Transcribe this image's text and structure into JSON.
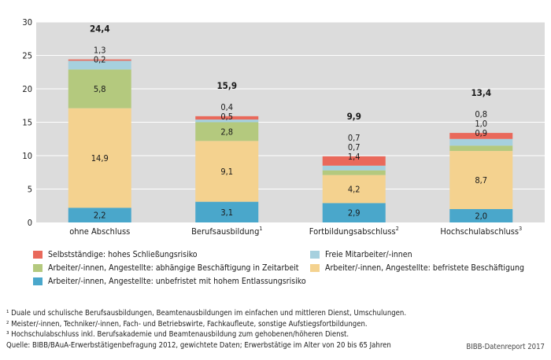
{
  "chart_data": {
    "type": "stacked_bar",
    "categories": [
      "ohne Abschluss",
      "Berufsausbildung",
      "Fortbildungsabschluss",
      "Hochschulabschluss"
    ],
    "category_footnote_marks": [
      "",
      "1",
      "2",
      "3"
    ],
    "ylim": [
      0,
      30
    ],
    "yticks": [
      "0",
      "5",
      "10",
      "15",
      "20",
      "25",
      "30"
    ],
    "series": [
      {
        "name": "Arbeiter/-innen, Angestellte: unbefristet mit hohem Entlassungsrisiko",
        "color": "#4aa7cb",
        "values": [
          2.2,
          3.1,
          2.9,
          2.0
        ],
        "labels": [
          "2,2",
          "3,1",
          "2,9",
          "2,0"
        ]
      },
      {
        "name": "Arbeiter/-innen, Angestellte: befristete Beschäftigung",
        "color": "#f4d28f",
        "values": [
          14.9,
          9.1,
          4.2,
          8.7
        ],
        "labels": [
          "14,9",
          "9,1",
          "4,2",
          "8,7"
        ]
      },
      {
        "name": "Arbeiter/-innen, Angestellte: abhängige Beschäftigung in Zeitarbeit",
        "color": "#b4c97e",
        "values": [
          5.8,
          2.8,
          0.7,
          0.8
        ],
        "labels": [
          "5,8",
          "2,8",
          "0,7",
          "0,8"
        ]
      },
      {
        "name": "Freie Mitarbeiter/-innen",
        "color": "#a6d0de",
        "values": [
          1.3,
          0.4,
          0.7,
          1.0
        ],
        "labels": [
          "1,3",
          "0,4",
          "0,7",
          "1,0"
        ]
      },
      {
        "name": "Selbstständige: hohes Schließungsrisiko",
        "color": "#e9695b",
        "values": [
          0.2,
          0.5,
          1.4,
          0.9
        ],
        "labels": [
          "0,2",
          "0,5",
          "1,4",
          "0,9"
        ]
      }
    ],
    "totals": [
      "24,4",
      "15,9",
      "9,9",
      "13,4"
    ],
    "total_values": [
      24.4,
      15.9,
      9.9,
      13.4
    ],
    "legend_order": [
      4,
      3,
      2,
      1,
      0
    ]
  },
  "footnotes": [
    "¹ Duale und schulische Berufsausbildungen, Beamtenausbildungen im einfachen und mittleren Dienst, Umschulungen.",
    "² Meister/-innen, Techniker/-innen, Fach- und Betriebswirte, Fachkaufleute, sonstige Aufstiegsfortbildungen.",
    "³ Hochschulabschluss inkl. Berufsakademie und Beamtenausbildung zum gehobenen/höheren Dienst.",
    "Quelle: BIBB/BAuA-Erwerbstätigenbefragung 2012, gewichtete Daten; Erwerbstätige im Alter von 20 bis 65 Jahren"
  ],
  "credit": "BIBB-Datenreport 2017"
}
